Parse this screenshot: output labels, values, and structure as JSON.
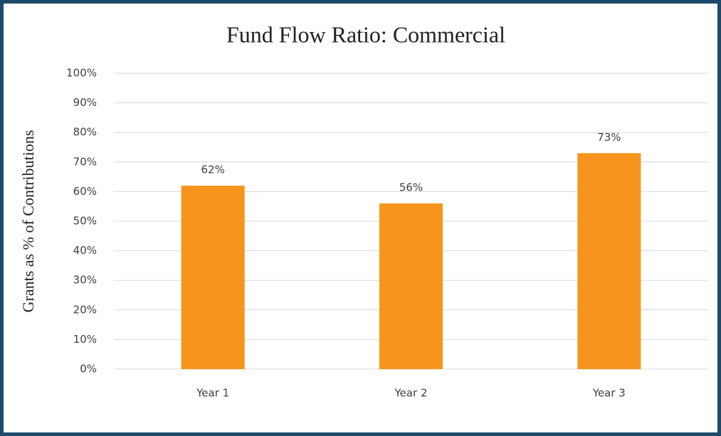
{
  "chart_data": {
    "type": "bar",
    "title": "Fund Flow Ratio: Commercial",
    "y_label": "Grants as % of Contributions",
    "categories": [
      "Year 1",
      "Year 2",
      "Year 3"
    ],
    "values": [
      62,
      56,
      73
    ],
    "value_labels": [
      "62%",
      "56%",
      "73%"
    ],
    "color": "#f7941d",
    "ylim": [
      0,
      100
    ],
    "yticks": [
      {
        "value": 0,
        "label": "0%"
      },
      {
        "value": 10,
        "label": "10%"
      },
      {
        "value": 20,
        "label": "20%"
      },
      {
        "value": 30,
        "label": "30%"
      },
      {
        "value": 40,
        "label": "40%"
      },
      {
        "value": 50,
        "label": "50%"
      },
      {
        "value": 60,
        "label": "60%"
      },
      {
        "value": 70,
        "label": "70%"
      },
      {
        "value": 80,
        "label": "80%"
      },
      {
        "value": 90,
        "label": "90%"
      },
      {
        "value": 100,
        "label": "100%"
      }
    ],
    "grid": true
  }
}
